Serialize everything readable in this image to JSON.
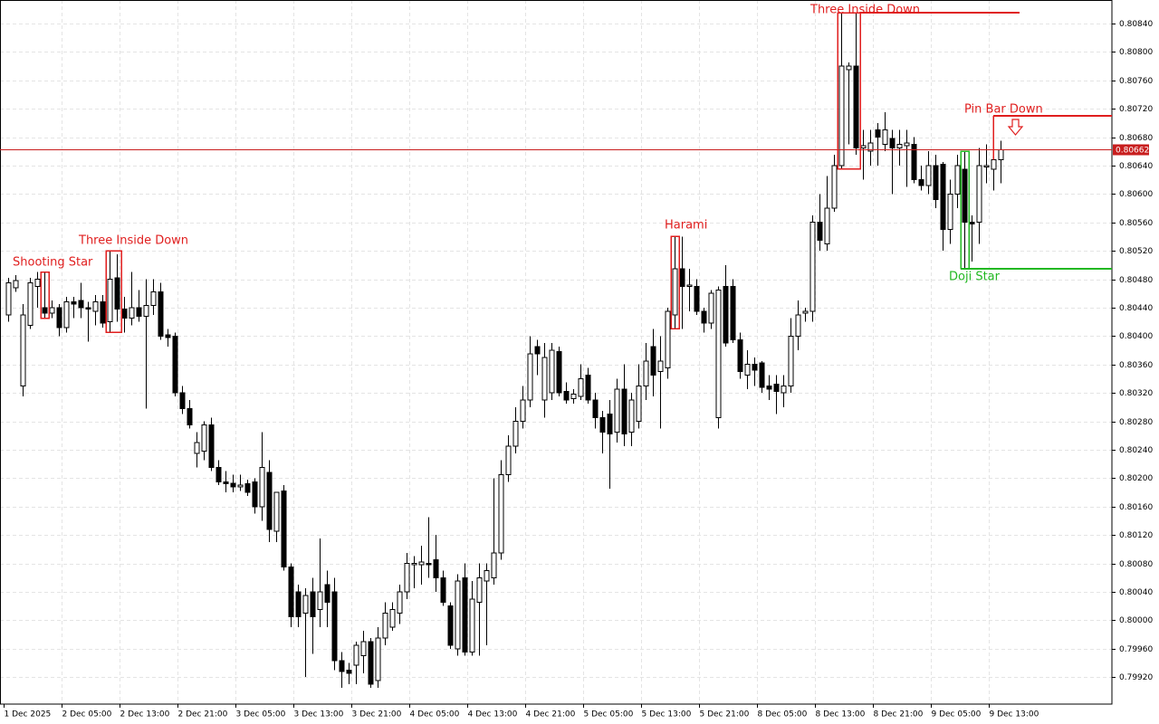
{
  "chart_data": {
    "type": "candlestick",
    "categories": [
      "1 Dec 2025",
      null,
      null,
      null,
      null,
      null,
      null,
      null,
      "2 Dec 05:00",
      null,
      null,
      null,
      null,
      null,
      null,
      null,
      "2 Dec 13:00",
      null,
      null,
      null,
      null,
      null,
      null,
      null,
      "2 Dec 21:00",
      null,
      null,
      null,
      null,
      null,
      null,
      null,
      "3 Dec 05:00",
      null,
      null,
      null,
      null,
      null,
      null,
      null,
      "3 Dec 13:00",
      null,
      null,
      null,
      null,
      null,
      null,
      null,
      "3 Dec 21:00",
      null,
      null,
      null,
      null,
      null,
      null,
      null,
      "4 Dec 05:00",
      null,
      null,
      null,
      null,
      null,
      null,
      null,
      "4 Dec 13:00",
      null,
      null,
      null,
      null,
      null,
      null,
      null,
      "4 Dec 21:00",
      null,
      null,
      null,
      null,
      null,
      null,
      null,
      "5 Dec 05:00",
      null,
      null,
      null,
      null,
      null,
      null,
      null,
      "5 Dec 13:00",
      null,
      null,
      null,
      null,
      null,
      null,
      null,
      "5 Dec 21:00",
      null,
      null,
      null,
      null,
      null,
      null,
      null,
      "8 Dec 05:00",
      null,
      null,
      null,
      null,
      null,
      null,
      null,
      "8 Dec 13:00",
      null,
      null,
      null,
      null,
      null,
      null,
      null,
      "8 Dec 21:00",
      null,
      null,
      null,
      null,
      null,
      null,
      null,
      "9 Dec 05:00",
      null,
      null,
      null,
      null,
      null,
      null,
      null,
      "9 Dec 13:00",
      null
    ],
    "open": [
      0.8043,
      0.80468,
      0.8033,
      0.80415,
      0.8047,
      0.8044,
      0.80432,
      0.8044,
      0.80412,
      0.80448,
      0.8045,
      0.8044,
      0.80435,
      0.80448,
      0.8042,
      0.80482,
      0.80438,
      0.80425,
      0.8044,
      0.80428,
      0.80443,
      0.80462,
      0.80402,
      0.804,
      0.8032,
      0.80298,
      0.80235,
      0.80238,
      0.80275,
      0.80215,
      0.80195,
      0.80193,
      0.80188,
      0.80192,
      0.80195,
      0.8016,
      0.80208,
      0.80125,
      0.80182,
      0.80075,
      0.8004,
      0.8001,
      0.8004,
      0.80015,
      0.8005,
      0.8004,
      0.79943,
      0.7993,
      0.79937,
      0.7995,
      0.7997,
      0.79915,
      0.79975,
      0.7999,
      0.8001,
      0.8004,
      0.80078,
      0.80078,
      0.8008,
      0.80085,
      0.8006,
      0.8002,
      0.7996,
      0.8006,
      0.79955,
      0.80025,
      0.80055,
      0.8006,
      0.80095,
      0.80205,
      0.80245,
      0.8028,
      0.8031,
      0.80385,
      0.8031,
      0.8032,
      0.80378,
      0.80322,
      0.80312,
      0.80315,
      0.80345,
      0.8031,
      0.80285,
      0.8029,
      0.80265,
      0.80325,
      0.80265,
      0.8028,
      0.8033,
      0.80385,
      0.8035,
      0.80355,
      0.8043,
      0.80495,
      0.8047,
      0.8047,
      0.80435,
      0.80418,
      0.80285,
      0.8047,
      0.8047,
      0.80395,
      0.80345,
      0.8036,
      0.80362,
      0.8033,
      0.80332,
      0.8032,
      0.8033,
      0.804,
      0.80432,
      0.80435,
      0.8056,
      0.8053,
      0.8058,
      0.8064,
      0.80775,
      0.8078,
      0.80665,
      0.8066,
      0.8069,
      0.8067,
      0.80678,
      0.80665,
      0.80668,
      0.8067,
      0.8062,
      0.80612,
      0.8064,
      0.80642,
      0.8055,
      0.806,
      0.80635,
      0.8056,
      0.8056,
      0.80638,
      0.80635,
      0.80648
    ],
    "high": [
      0.80482,
      0.80486,
      0.80445,
      0.80482,
      0.8049,
      0.8049,
      0.8045,
      0.80445,
      0.80455,
      0.80455,
      0.80475,
      0.80448,
      0.80458,
      0.80458,
      0.8052,
      0.80515,
      0.80455,
      0.8049,
      0.80465,
      0.8048,
      0.8048,
      0.80475,
      0.8041,
      0.80405,
      0.8033,
      0.8031,
      0.80265,
      0.8028,
      0.80285,
      0.80225,
      0.8021,
      0.80205,
      0.80205,
      0.80198,
      0.802,
      0.80265,
      0.80225,
      0.8018,
      0.8019,
      0.8008,
      0.8005,
      0.80045,
      0.8006,
      0.80115,
      0.8007,
      0.8006,
      0.79955,
      0.7994,
      0.7997,
      0.79985,
      0.79975,
      0.7999,
      0.80025,
      0.80025,
      0.8005,
      0.80095,
      0.8009,
      0.80105,
      0.80145,
      0.8012,
      0.8007,
      0.80025,
      0.80065,
      0.8008,
      0.80055,
      0.8008,
      0.8008,
      0.802,
      0.80225,
      0.8026,
      0.803,
      0.8033,
      0.804,
      0.80395,
      0.8039,
      0.8039,
      0.80385,
      0.80335,
      0.80325,
      0.8036,
      0.80355,
      0.8032,
      0.80295,
      0.8031,
      0.8034,
      0.8036,
      0.8032,
      0.8036,
      0.8039,
      0.8041,
      0.804,
      0.8044,
      0.8054,
      0.8054,
      0.80495,
      0.8048,
      0.8044,
      0.80465,
      0.8047,
      0.805,
      0.8048,
      0.80405,
      0.8038,
      0.8037,
      0.80365,
      0.80345,
      0.80345,
      0.80345,
      0.80425,
      0.8045,
      0.8044,
      0.8057,
      0.806,
      0.80625,
      0.80655,
      0.80855,
      0.80785,
      0.80855,
      0.8069,
      0.8069,
      0.807,
      0.80715,
      0.8069,
      0.8069,
      0.8069,
      0.8068,
      0.8064,
      0.8066,
      0.80655,
      0.80645,
      0.8062,
      0.80655,
      0.8066,
      0.8057,
      0.80665,
      0.8067,
      0.8071,
      0.80675
    ],
    "low": [
      0.8042,
      0.80462,
      0.80315,
      0.8041,
      0.8044,
      0.80425,
      0.80425,
      0.804,
      0.80405,
      0.80425,
      0.80425,
      0.80392,
      0.80415,
      0.80412,
      0.80405,
      0.8042,
      0.80405,
      0.80415,
      0.8042,
      0.80298,
      0.8043,
      0.80395,
      0.80385,
      0.80315,
      0.8029,
      0.8027,
      0.80215,
      0.80225,
      0.8021,
      0.8019,
      0.8018,
      0.8018,
      0.80182,
      0.80175,
      0.8015,
      0.8014,
      0.8011,
      0.8011,
      0.8007,
      0.7999,
      0.7999,
      0.7992,
      0.79953,
      0.7999,
      0.7999,
      0.7993,
      0.79905,
      0.7991,
      0.7991,
      0.79925,
      0.79905,
      0.79905,
      0.79965,
      0.79985,
      0.79995,
      0.8003,
      0.80045,
      0.8005,
      0.8006,
      0.8004,
      0.8002,
      0.7996,
      0.7995,
      0.7995,
      0.7995,
      0.7995,
      0.79965,
      0.8005,
      0.80085,
      0.80195,
      0.80235,
      0.8027,
      0.803,
      0.80345,
      0.80285,
      0.8031,
      0.80315,
      0.80305,
      0.80305,
      0.8031,
      0.80305,
      0.8027,
      0.80235,
      0.80185,
      0.8025,
      0.80245,
      0.80245,
      0.8027,
      0.8031,
      0.80315,
      0.8027,
      0.8034,
      0.8041,
      0.8041,
      0.80435,
      0.8043,
      0.80405,
      0.8041,
      0.8027,
      0.80385,
      0.8039,
      0.8034,
      0.80325,
      0.8033,
      0.8032,
      0.8031,
      0.8029,
      0.803,
      0.8032,
      0.8038,
      0.8042,
      0.8042,
      0.8052,
      0.8052,
      0.80575,
      0.80635,
      0.8067,
      0.80655,
      0.8062,
      0.8064,
      0.8064,
      0.8066,
      0.806,
      0.8064,
      0.8061,
      0.80615,
      0.80605,
      0.806,
      0.8058,
      0.8052,
      0.8053,
      0.8058,
      0.80495,
      0.80505,
      0.8053,
      0.80615,
      0.80605,
      0.80615
    ],
    "close": [
      0.80475,
      0.80478,
      0.8043,
      0.80475,
      0.8048,
      0.80432,
      0.8044,
      0.80412,
      0.80448,
      0.80445,
      0.8044,
      0.80438,
      0.80448,
      0.80418,
      0.8048,
      0.80438,
      0.80425,
      0.8044,
      0.80428,
      0.80443,
      0.80462,
      0.804,
      0.80398,
      0.8032,
      0.80298,
      0.80275,
      0.8025,
      0.80275,
      0.80215,
      0.80195,
      0.80192,
      0.80188,
      0.8019,
      0.8018,
      0.8016,
      0.80215,
      0.80128,
      0.8018,
      0.80075,
      0.80005,
      0.80005,
      0.80035,
      0.80005,
      0.8004,
      0.80025,
      0.79943,
      0.79928,
      0.79925,
      0.79965,
      0.7997,
      0.7991,
      0.79975,
      0.8001,
      0.80015,
      0.8004,
      0.8008,
      0.8008,
      0.80082,
      0.80078,
      0.8006,
      0.80025,
      0.79965,
      0.80055,
      0.79955,
      0.8003,
      0.8006,
      0.8007,
      0.80095,
      0.80205,
      0.80245,
      0.8028,
      0.8031,
      0.80375,
      0.80375,
      0.8037,
      0.8038,
      0.8032,
      0.8031,
      0.80318,
      0.8034,
      0.8031,
      0.80285,
      0.80265,
      0.80262,
      0.80325,
      0.80262,
      0.8031,
      0.8033,
      0.80365,
      0.80345,
      0.80365,
      0.80435,
      0.80495,
      0.8047,
      0.80472,
      0.80435,
      0.80418,
      0.8046,
      0.80465,
      0.8039,
      0.80395,
      0.8035,
      0.8036,
      0.80352,
      0.80328,
      0.80325,
      0.80322,
      0.8033,
      0.804,
      0.8043,
      0.80435,
      0.8056,
      0.80535,
      0.8058,
      0.8064,
      0.8078,
      0.8078,
      0.80665,
      0.80668,
      0.80672,
      0.8068,
      0.8069,
      0.80665,
      0.8067,
      0.80672,
      0.8062,
      0.80612,
      0.8064,
      0.80592,
      0.8055,
      0.806,
      0.8064,
      0.8056,
      0.80558,
      0.8064,
      0.8064,
      0.80648,
      0.80662
    ],
    "ylim": [
      0.79882,
      0.80873
    ],
    "yticks": [
      {
        "value": 0.7992,
        "label": "0.79920"
      },
      {
        "value": 0.7996,
        "label": "0.79960"
      },
      {
        "value": 0.8,
        "label": "0.80000"
      },
      {
        "value": 0.8004,
        "label": "0.80040"
      },
      {
        "value": 0.8008,
        "label": "0.80080"
      },
      {
        "value": 0.8012,
        "label": "0.80120"
      },
      {
        "value": 0.8016,
        "label": "0.80160"
      },
      {
        "value": 0.802,
        "label": "0.80200"
      },
      {
        "value": 0.8024,
        "label": "0.80240"
      },
      {
        "value": 0.8028,
        "label": "0.80280"
      },
      {
        "value": 0.8032,
        "label": "0.80320"
      },
      {
        "value": 0.8036,
        "label": "0.80360"
      },
      {
        "value": 0.804,
        "label": "0.80400"
      },
      {
        "value": 0.8044,
        "label": "0.80440"
      },
      {
        "value": 0.8048,
        "label": "0.80480"
      },
      {
        "value": 0.8052,
        "label": "0.80520"
      },
      {
        "value": 0.8056,
        "label": "0.80560"
      },
      {
        "value": 0.806,
        "label": "0.80600"
      },
      {
        "value": 0.8064,
        "label": "0.80640"
      },
      {
        "value": 0.8068,
        "label": "0.80680"
      },
      {
        "value": 0.8072,
        "label": "0.80720"
      },
      {
        "value": 0.8076,
        "label": "0.80760"
      },
      {
        "value": 0.808,
        "label": "0.80800"
      },
      {
        "value": 0.8084,
        "label": "0.80840"
      }
    ],
    "grid": true,
    "current_price": 0.80662,
    "current_price_color": "#c81e1e",
    "annotations": [
      {
        "text": "Shooting Star",
        "color": "#e01e1e"
      },
      {
        "text": "Three Inside Down",
        "color": "#e01e1e"
      },
      {
        "text": "Harami",
        "color": "#e01e1e"
      },
      {
        "text": "Three Inside Down",
        "color": "#e01e1e"
      },
      {
        "text": "Pin Bar Down",
        "color": "#e01e1e"
      },
      {
        "text": "Doji Star",
        "color": "#22b822"
      }
    ]
  }
}
